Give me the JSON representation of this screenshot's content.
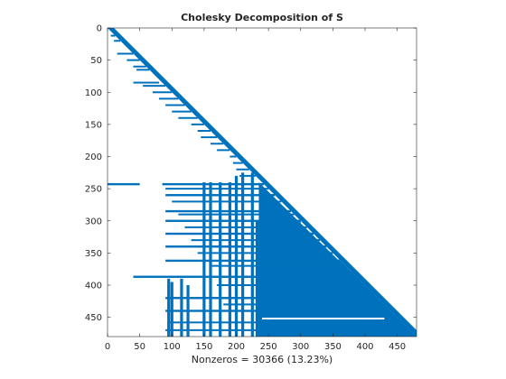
{
  "chart_data": {
    "type": "spy",
    "title": "Cholesky Decomposition of S",
    "xlabel": "Nonzeros = 30366 (13.23%)",
    "ylabel": "",
    "matrix_size": 480,
    "nonzeros": 30366,
    "density_percent": 13.23,
    "structure": "lower-triangular",
    "xlim": [
      0,
      480
    ],
    "ylim": [
      0,
      480
    ],
    "y_reversed": true,
    "xticks": [
      0,
      50,
      100,
      150,
      200,
      250,
      300,
      350,
      400,
      450
    ],
    "yticks": [
      0,
      50,
      100,
      150,
      200,
      250,
      300,
      350,
      400,
      450
    ],
    "marker_color": "#0072BD",
    "dense_blocks": [
      {
        "rows": [
          380,
          480
        ],
        "cols": [
          240,
          480
        ]
      },
      {
        "rows": [
          360,
          480
        ],
        "cols": [
          280,
          480
        ]
      },
      {
        "rows": [
          300,
          480
        ],
        "cols": [
          230,
          300
        ]
      }
    ],
    "row_bands": [
      {
        "row": 243,
        "cols": [
          0,
          50
        ]
      },
      {
        "row": 243,
        "cols": [
          85,
          280
        ]
      },
      {
        "row": 260,
        "cols": [
          90,
          300
        ]
      },
      {
        "row": 285,
        "cols": [
          90,
          310
        ]
      },
      {
        "row": 300,
        "cols": [
          90,
          320
        ]
      },
      {
        "row": 320,
        "cols": [
          90,
          330
        ]
      },
      {
        "row": 340,
        "cols": [
          90,
          340
        ]
      },
      {
        "row": 362,
        "cols": [
          90,
          360
        ]
      },
      {
        "row": 387,
        "cols": [
          40,
          380
        ]
      },
      {
        "row": 420,
        "cols": [
          90,
          420
        ]
      },
      {
        "row": 440,
        "cols": [
          90,
          430
        ]
      }
    ],
    "column_bands": [
      {
        "col": 95,
        "rows": [
          390,
          480
        ]
      },
      {
        "col": 100,
        "rows": [
          395,
          480
        ]
      },
      {
        "col": 115,
        "rows": [
          390,
          480
        ]
      },
      {
        "col": 125,
        "rows": [
          400,
          480
        ]
      },
      {
        "col": 150,
        "rows": [
          240,
          480
        ]
      },
      {
        "col": 160,
        "rows": [
          240,
          480
        ]
      },
      {
        "col": 175,
        "rows": [
          240,
          480
        ]
      },
      {
        "col": 190,
        "rows": [
          240,
          480
        ]
      },
      {
        "col": 200,
        "rows": [
          230,
          480
        ]
      },
      {
        "col": 210,
        "rows": [
          225,
          480
        ]
      },
      {
        "col": 225,
        "rows": [
          220,
          480
        ]
      }
    ],
    "gaps_in_dense_region": [
      {
        "row": 452,
        "cols": [
          240,
          430
        ]
      }
    ],
    "grid": false
  }
}
